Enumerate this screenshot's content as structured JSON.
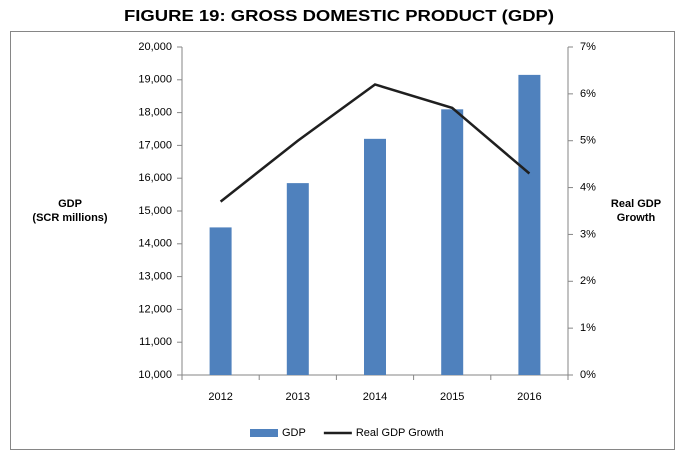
{
  "chart_data": {
    "type": "bar+line",
    "title": "FIGURE 19: GROSS DOMESTIC PRODUCT (GDP)",
    "y_label": [
      "GDP",
      "(SCR millions)"
    ],
    "y2_label": [
      "Real GDP",
      "Growth"
    ],
    "categories": [
      "2012",
      "2013",
      "2014",
      "2015",
      "2016"
    ],
    "series": [
      {
        "name": "GDP",
        "type": "bar",
        "color": "#4f81bd",
        "axis": "y",
        "values": [
          14500,
          15850,
          17200,
          18100,
          19150
        ]
      },
      {
        "name": "Real GDP Growth",
        "type": "line",
        "color": "#1f1f1f",
        "axis": "y2",
        "values": [
          3.7,
          5.0,
          6.2,
          5.7,
          4.3
        ]
      }
    ],
    "ylim": [
      10000,
      20000
    ],
    "yticks": [
      {
        "value": 10000,
        "label": "10,000"
      },
      {
        "value": 11000,
        "label": "11,000"
      },
      {
        "value": 12000,
        "label": "12,000"
      },
      {
        "value": 13000,
        "label": "13,000"
      },
      {
        "value": 14000,
        "label": "14,000"
      },
      {
        "value": 15000,
        "label": "15,000"
      },
      {
        "value": 16000,
        "label": "16,000"
      },
      {
        "value": 17000,
        "label": "17,000"
      },
      {
        "value": 18000,
        "label": "18,000"
      },
      {
        "value": 19000,
        "label": "19,000"
      },
      {
        "value": 20000,
        "label": "20,000"
      }
    ],
    "y2lim": [
      0,
      7
    ],
    "y2ticks": [
      {
        "value": 0,
        "label": "0%"
      },
      {
        "value": 1,
        "label": "1%"
      },
      {
        "value": 2,
        "label": "2%"
      },
      {
        "value": 3,
        "label": "3%"
      },
      {
        "value": 4,
        "label": "4%"
      },
      {
        "value": 5,
        "label": "5%"
      },
      {
        "value": 6,
        "label": "6%"
      },
      {
        "value": 7,
        "label": "7%"
      }
    ],
    "grid": false,
    "legend": "bottom"
  }
}
